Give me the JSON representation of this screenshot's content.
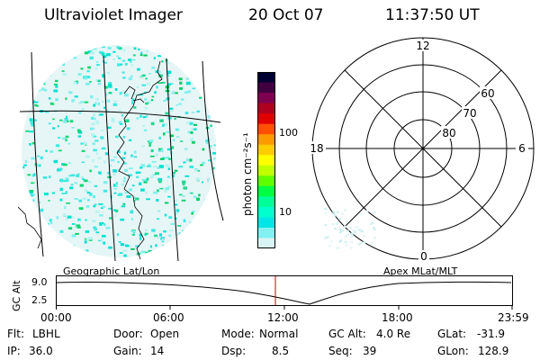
{
  "header": {
    "instrument": "Ultraviolet Imager",
    "date": "20 Oct 07",
    "time": "11:37:50 UT"
  },
  "colorbar": {
    "unit_label": "photon cm⁻²s⁻¹",
    "ticks": [
      "100",
      "10"
    ],
    "colors": [
      "#000033",
      "#400040",
      "#800050",
      "#b00020",
      "#e00000",
      "#ff5000",
      "#ff9900",
      "#ffcc00",
      "#ffff00",
      "#c0ff00",
      "#60ff00",
      "#00ff40",
      "#00ff99",
      "#00ffcc",
      "#00e6e6",
      "#80f0f0",
      "#d8f4f4"
    ]
  },
  "polar_plot": {
    "mlt_labels": {
      "top": "12",
      "left": "18",
      "right": "6",
      "bottom": "0"
    },
    "lat_labels": [
      "60",
      "70",
      "80"
    ]
  },
  "timeline": {
    "left_title": "Geographic Lat/Lon",
    "right_title": "Apex MLat/MLT",
    "ylabel": "GC Alt",
    "yticks": [
      "9.0",
      "2.5"
    ],
    "xticks": [
      "00:00",
      "06:00",
      "12:00",
      "18:00",
      "23:59"
    ]
  },
  "info": {
    "filter_label": "Flt:",
    "filter_value": "LBHL",
    "ip_label": "IP:",
    "ip_value": "36.0",
    "door_label": "Door:",
    "door_value": "Open",
    "gain_label": "Gain:",
    "gain_value": "14",
    "mode_label": "Mode:",
    "mode_value": "Normal",
    "dsp_label": "Dsp:",
    "dsp_value": "8.5",
    "gcalt_label": "GC Alt:",
    "gcalt_value": "4.0 Re",
    "seq_label": "Seq:",
    "seq_value": "39",
    "glat_label": "GLat:",
    "glat_value": "-31.9",
    "glon_label": "GLon:",
    "glon_value": "128.9"
  }
}
